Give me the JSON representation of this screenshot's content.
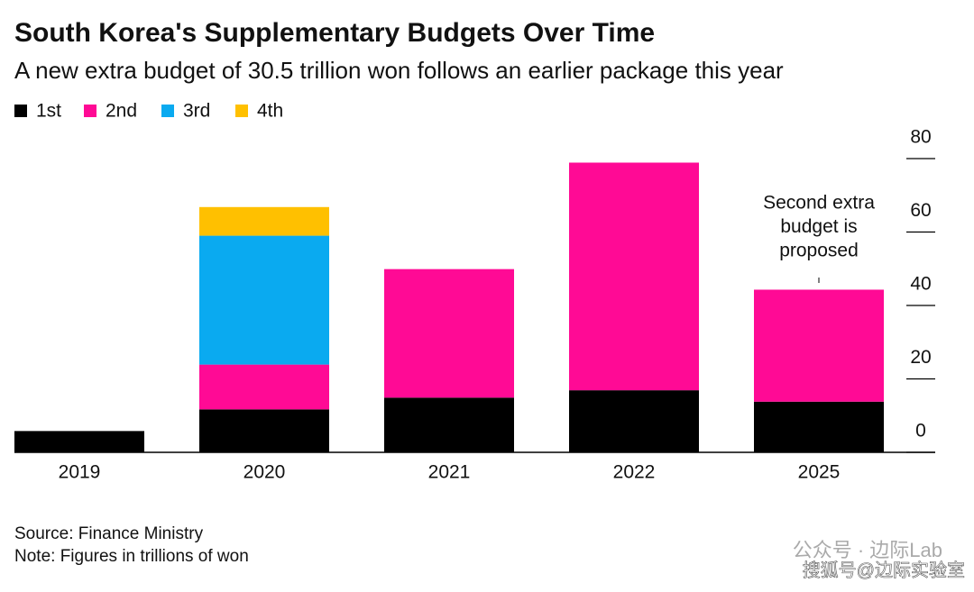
{
  "chart_data": {
    "type": "stacked_bar",
    "title": "South Korea's Supplementary Budgets Over Time",
    "subtitle": "A new extra budget of 30.5 trillion won follows an earlier package this year",
    "categories": [
      "2019",
      "2020",
      "2021",
      "2022",
      "2025"
    ],
    "series": [
      {
        "name": "1st",
        "color": "#000000",
        "values": [
          5.8,
          11.7,
          14.9,
          16.9,
          13.8
        ]
      },
      {
        "name": "2nd",
        "color": "#ff0a95",
        "values": [
          null,
          12.2,
          35,
          62,
          30.5
        ]
      },
      {
        "name": "3rd",
        "color": "#0aaaf0",
        "values": [
          null,
          35.1,
          null,
          null,
          null
        ]
      },
      {
        "name": "4th",
        "color": "#ffc000",
        "values": [
          null,
          7.8,
          null,
          null,
          null
        ]
      }
    ],
    "ylim": [
      0,
      80
    ],
    "yticks": [
      0,
      20,
      40,
      60,
      80
    ],
    "annotation": [
      "Second extra",
      "budget is",
      "proposed"
    ],
    "source": "Source: Finance Ministry",
    "note": "Note: Figures in trillions of won",
    "watermarks": [
      "公众号 · 边际Lab",
      "搜狐号@边际实验室"
    ]
  }
}
